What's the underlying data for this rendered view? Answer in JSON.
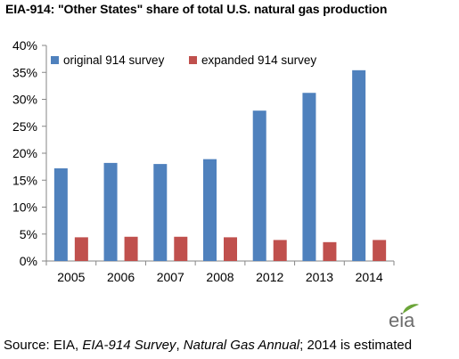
{
  "title": "EIA-914: \"Other States\" share of total U.S. natural gas production",
  "source": {
    "prefix": "Source: EIA, ",
    "survey": "EIA-914 Survey",
    "sep": ", ",
    "annual": "Natural Gas Annual",
    "suffix": "; 2014 is estimated"
  },
  "logo_text": "eia",
  "colors": {
    "original": "#4F81BD",
    "expanded": "#C0504D",
    "axis": "#868686",
    "logo_green": "#6BA539"
  },
  "chart_data": {
    "type": "bar",
    "title": "EIA-914: \"Other States\" share of total U.S. natural gas production",
    "categories": [
      "2005",
      "2006",
      "2007",
      "2008",
      "2012",
      "2013",
      "2014"
    ],
    "series": [
      {
        "name": "original 914 survey",
        "values": [
          17.2,
          18.2,
          18.0,
          18.9,
          27.9,
          31.2,
          35.4
        ]
      },
      {
        "name": "expanded 914 survey",
        "values": [
          4.4,
          4.5,
          4.5,
          4.4,
          3.9,
          3.5,
          3.9
        ]
      }
    ],
    "ylim": [
      0,
      40
    ],
    "yticks": [
      "0%",
      "5%",
      "10%",
      "15%",
      "20%",
      "25%",
      "30%",
      "35%",
      "40%"
    ],
    "legend_position": "top-left",
    "grid": false
  }
}
